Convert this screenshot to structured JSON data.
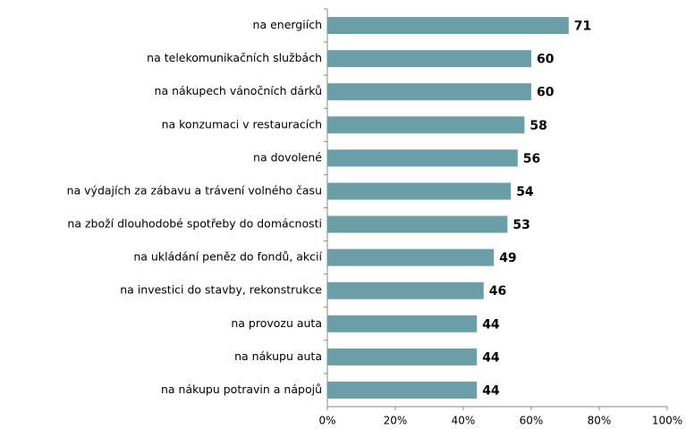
{
  "chart_data": {
    "type": "bar",
    "orientation": "horizontal",
    "categories": [
      "na energiích",
      "na telekomunikačních službách",
      "na nákupech vánočních dárků",
      "na konzumaci v restauracích",
      "na dovolené",
      "na výdajích za zábavu a trávení volného času",
      "na zboží dlouhodobé spotřeby do domácnosti",
      "na ukládání peněz do fondů, akcií",
      "na investici do stavby, rekonstrukce",
      "na provozu auta",
      "na nákupu auta",
      "na nákupu potravin a nápojů"
    ],
    "values": [
      71,
      60,
      60,
      58,
      56,
      54,
      53,
      49,
      46,
      44,
      44,
      44
    ],
    "color": "#6a9fa8",
    "xlim": [
      0,
      100
    ],
    "xticks": [
      {
        "value": 0,
        "label": "0%"
      },
      {
        "value": 20,
        "label": "20%"
      },
      {
        "value": 40,
        "label": "40%"
      },
      {
        "value": 60,
        "label": "60%"
      },
      {
        "value": 80,
        "label": "80%"
      },
      {
        "value": 100,
        "label": "100%"
      }
    ]
  }
}
